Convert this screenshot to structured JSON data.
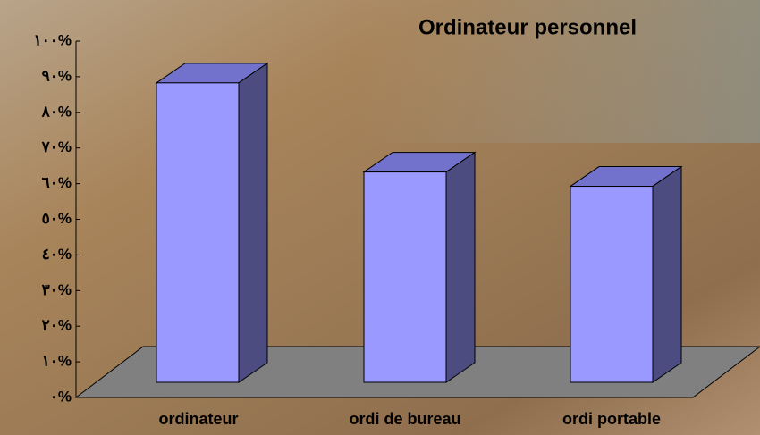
{
  "chart_data": {
    "type": "bar3d",
    "title": "Ordinateur personnel",
    "categories": [
      "ordinateur",
      "ordi de bureau",
      "ordi portable"
    ],
    "values": [
      84,
      59,
      55
    ],
    "color": "#9999ff",
    "ylim": [
      0,
      100
    ],
    "yticks": [
      {
        "value": 0,
        "label": "٠%"
      },
      {
        "value": 10,
        "label": "١٠%"
      },
      {
        "value": 20,
        "label": "٢٠%"
      },
      {
        "value": 30,
        "label": "٣٠%"
      },
      {
        "value": 40,
        "label": "٤٠%"
      },
      {
        "value": 50,
        "label": "٥٠%"
      },
      {
        "value": 60,
        "label": "٦٠%"
      },
      {
        "value": 70,
        "label": "٧٠%"
      },
      {
        "value": 80,
        "label": "٨٠%"
      },
      {
        "value": 90,
        "label": "٩٠%"
      },
      {
        "value": 100,
        "label": "١٠٠%"
      }
    ]
  }
}
